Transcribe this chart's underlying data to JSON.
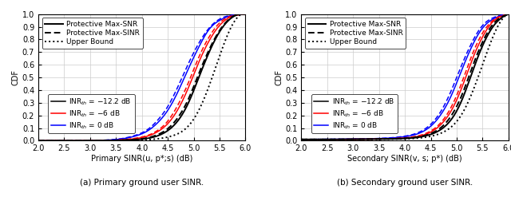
{
  "xlim": [
    2,
    6
  ],
  "ylim": [
    0,
    1
  ],
  "xticks": [
    2,
    2.5,
    3,
    3.5,
    4,
    4.5,
    5,
    5.5,
    6
  ],
  "yticks": [
    0,
    0.1,
    0.2,
    0.3,
    0.4,
    0.5,
    0.6,
    0.7,
    0.8,
    0.9,
    1.0
  ],
  "xlabel_left": "Primary SINR(u, p*;s) (dB)",
  "xlabel_right": "Secondary SINR(v, s; p*) (dB)",
  "ylabel": "CDF",
  "subtitle_left": "(a) Primary ground user SINR.",
  "subtitle_right": "(b) Secondary ground user SINR.",
  "fontsize": 7,
  "linewidth": 1.1,
  "figsize": [
    6.4,
    2.52
  ],
  "left_curves": {
    "upper_bound": {
      "x": [
        2.0,
        2.5,
        3.0,
        3.5,
        4.0,
        4.3,
        4.6,
        4.8,
        5.0,
        5.2,
        5.4,
        5.6,
        5.8,
        6.0
      ],
      "y": [
        0.0,
        0.0,
        0.0,
        0.001,
        0.005,
        0.015,
        0.04,
        0.08,
        0.17,
        0.33,
        0.55,
        0.78,
        0.95,
        1.0
      ]
    },
    "black_solid": {
      "x": [
        2.0,
        2.5,
        3.0,
        3.3,
        3.6,
        3.9,
        4.1,
        4.3,
        4.5,
        4.7,
        4.9,
        5.1,
        5.3,
        5.5,
        5.7,
        6.0
      ],
      "y": [
        0.0,
        0.0,
        0.0,
        0.001,
        0.003,
        0.009,
        0.018,
        0.038,
        0.08,
        0.16,
        0.3,
        0.5,
        0.7,
        0.86,
        0.96,
        1.0
      ]
    },
    "black_dashed": {
      "x": [
        2.0,
        2.5,
        3.0,
        3.3,
        3.6,
        3.9,
        4.1,
        4.3,
        4.5,
        4.7,
        4.9,
        5.1,
        5.3,
        5.5,
        5.7,
        6.0
      ],
      "y": [
        0.0,
        0.0,
        0.0,
        0.001,
        0.004,
        0.011,
        0.022,
        0.047,
        0.095,
        0.185,
        0.33,
        0.53,
        0.72,
        0.87,
        0.965,
        1.0
      ]
    },
    "red_solid": {
      "x": [
        2.0,
        2.5,
        3.0,
        3.3,
        3.6,
        3.9,
        4.1,
        4.3,
        4.5,
        4.7,
        4.9,
        5.1,
        5.3,
        5.5,
        5.7,
        6.0
      ],
      "y": [
        0.0,
        0.0,
        0.0,
        0.002,
        0.006,
        0.018,
        0.035,
        0.07,
        0.135,
        0.25,
        0.42,
        0.62,
        0.79,
        0.91,
        0.975,
        1.0
      ]
    },
    "red_dashed": {
      "x": [
        2.0,
        2.5,
        3.0,
        3.3,
        3.6,
        3.9,
        4.1,
        4.3,
        4.5,
        4.7,
        4.9,
        5.1,
        5.3,
        5.5,
        5.7,
        6.0
      ],
      "y": [
        0.0,
        0.0,
        0.0,
        0.002,
        0.007,
        0.021,
        0.04,
        0.08,
        0.155,
        0.285,
        0.46,
        0.66,
        0.82,
        0.93,
        0.98,
        1.0
      ]
    },
    "blue_solid": {
      "x": [
        2.0,
        2.5,
        3.0,
        3.3,
        3.6,
        3.9,
        4.1,
        4.3,
        4.5,
        4.7,
        4.9,
        5.1,
        5.3,
        5.5,
        5.7,
        6.0
      ],
      "y": [
        0.0,
        0.0,
        0.001,
        0.004,
        0.014,
        0.04,
        0.075,
        0.14,
        0.24,
        0.39,
        0.57,
        0.74,
        0.88,
        0.95,
        0.985,
        1.0
      ]
    },
    "blue_dashed": {
      "x": [
        2.0,
        2.5,
        3.0,
        3.3,
        3.6,
        3.9,
        4.1,
        4.3,
        4.5,
        4.7,
        4.9,
        5.1,
        5.3,
        5.5,
        5.7,
        6.0
      ],
      "y": [
        0.0,
        0.0,
        0.001,
        0.005,
        0.016,
        0.046,
        0.085,
        0.16,
        0.27,
        0.43,
        0.61,
        0.77,
        0.89,
        0.96,
        0.988,
        1.0
      ]
    }
  },
  "right_curves": {
    "upper_bound": {
      "x": [
        2.0,
        2.5,
        3.0,
        3.5,
        4.0,
        4.3,
        4.5,
        4.7,
        4.9,
        5.1,
        5.3,
        5.5,
        5.7,
        5.9,
        6.0
      ],
      "y": [
        0.01,
        0.01,
        0.011,
        0.012,
        0.015,
        0.022,
        0.035,
        0.06,
        0.11,
        0.21,
        0.38,
        0.6,
        0.82,
        0.97,
        1.0
      ]
    },
    "black_solid": {
      "x": [
        2.0,
        2.5,
        3.0,
        3.5,
        4.0,
        4.3,
        4.5,
        4.7,
        4.9,
        5.1,
        5.3,
        5.5,
        5.7,
        5.9,
        6.0
      ],
      "y": [
        0.01,
        0.01,
        0.011,
        0.013,
        0.018,
        0.03,
        0.05,
        0.09,
        0.17,
        0.32,
        0.54,
        0.75,
        0.9,
        0.98,
        1.0
      ]
    },
    "black_dashed": {
      "x": [
        2.0,
        2.5,
        3.0,
        3.5,
        4.0,
        4.3,
        4.5,
        4.7,
        4.9,
        5.1,
        5.3,
        5.5,
        5.7,
        5.9,
        6.0
      ],
      "y": [
        0.01,
        0.01,
        0.011,
        0.013,
        0.019,
        0.033,
        0.057,
        0.105,
        0.2,
        0.36,
        0.58,
        0.78,
        0.92,
        0.984,
        1.0
      ]
    },
    "red_solid": {
      "x": [
        2.0,
        2.5,
        3.0,
        3.5,
        4.0,
        4.3,
        4.5,
        4.7,
        4.9,
        5.1,
        5.3,
        5.5,
        5.7,
        5.9,
        6.0
      ],
      "y": [
        0.01,
        0.01,
        0.011,
        0.013,
        0.021,
        0.038,
        0.068,
        0.13,
        0.24,
        0.42,
        0.64,
        0.82,
        0.94,
        0.988,
        1.0
      ]
    },
    "red_dashed": {
      "x": [
        2.0,
        2.5,
        3.0,
        3.5,
        4.0,
        4.3,
        4.5,
        4.7,
        4.9,
        5.1,
        5.3,
        5.5,
        5.7,
        5.9,
        6.0
      ],
      "y": [
        0.01,
        0.01,
        0.011,
        0.014,
        0.023,
        0.043,
        0.077,
        0.145,
        0.27,
        0.46,
        0.68,
        0.85,
        0.95,
        0.99,
        1.0
      ]
    },
    "blue_solid": {
      "x": [
        2.0,
        2.5,
        3.0,
        3.5,
        4.0,
        4.3,
        4.5,
        4.7,
        4.9,
        5.1,
        5.3,
        5.5,
        5.7,
        5.9,
        6.0
      ],
      "y": [
        0.01,
        0.011,
        0.013,
        0.017,
        0.032,
        0.063,
        0.115,
        0.21,
        0.36,
        0.56,
        0.75,
        0.89,
        0.96,
        0.993,
        1.0
      ]
    },
    "blue_dashed": {
      "x": [
        2.0,
        2.5,
        3.0,
        3.5,
        4.0,
        4.3,
        4.5,
        4.7,
        4.9,
        5.1,
        5.3,
        5.5,
        5.7,
        5.9,
        6.0
      ],
      "y": [
        0.01,
        0.011,
        0.013,
        0.018,
        0.036,
        0.072,
        0.13,
        0.235,
        0.4,
        0.6,
        0.78,
        0.91,
        0.97,
        0.995,
        1.0
      ]
    }
  }
}
